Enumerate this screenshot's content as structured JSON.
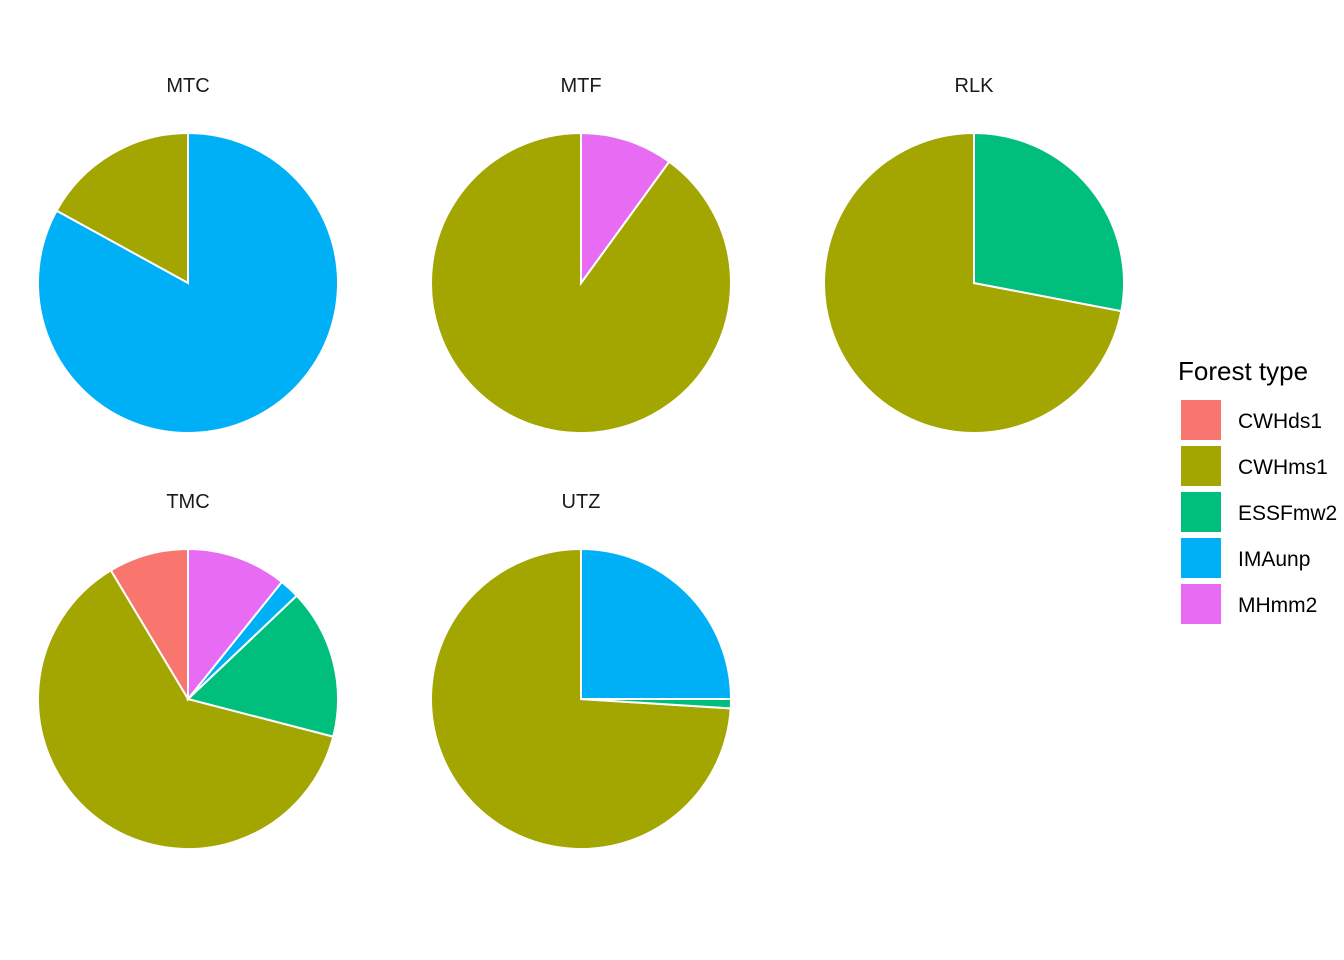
{
  "chart_data": {
    "type": "pie",
    "legend": {
      "title": "Forest type",
      "placement": "right",
      "entries": [
        {
          "label": "CWHds1",
          "color": "#F8766D"
        },
        {
          "label": "CWHms1",
          "color": "#A3A500"
        },
        {
          "label": "ESSFmw2",
          "color": "#00BF7D"
        },
        {
          "label": "IMAunp",
          "color": "#00B0F6"
        },
        {
          "label": "MHmm2",
          "color": "#E76BF3"
        }
      ]
    },
    "facets": [
      {
        "title": "MTC",
        "slices": [
          {
            "category": "CWHms1",
            "value": 0.17
          },
          {
            "category": "IMAunp",
            "value": 0.83
          }
        ]
      },
      {
        "title": "MTF",
        "slices": [
          {
            "category": "CWHms1",
            "value": 0.9
          },
          {
            "category": "MHmm2",
            "value": 0.1
          }
        ]
      },
      {
        "title": "RLK",
        "slices": [
          {
            "category": "CWHms1",
            "value": 0.72
          },
          {
            "category": "ESSFmw2",
            "value": 0.28
          }
        ]
      },
      {
        "title": "TMC",
        "slices": [
          {
            "category": "CWHds1",
            "value": 0.08
          },
          {
            "category": "CWHms1",
            "value": 0.58
          },
          {
            "category": "ESSFmw2",
            "value": 0.15
          },
          {
            "category": "IMAunp",
            "value": 0.02
          },
          {
            "category": "MHmm2",
            "value": 0.1
          }
        ]
      },
      {
        "title": "UTZ",
        "slices": [
          {
            "category": "CWHms1",
            "value": 0.74
          },
          {
            "category": "ESSFmw2",
            "value": 0.01
          },
          {
            "category": "IMAunp",
            "value": 0.25
          }
        ]
      }
    ]
  }
}
